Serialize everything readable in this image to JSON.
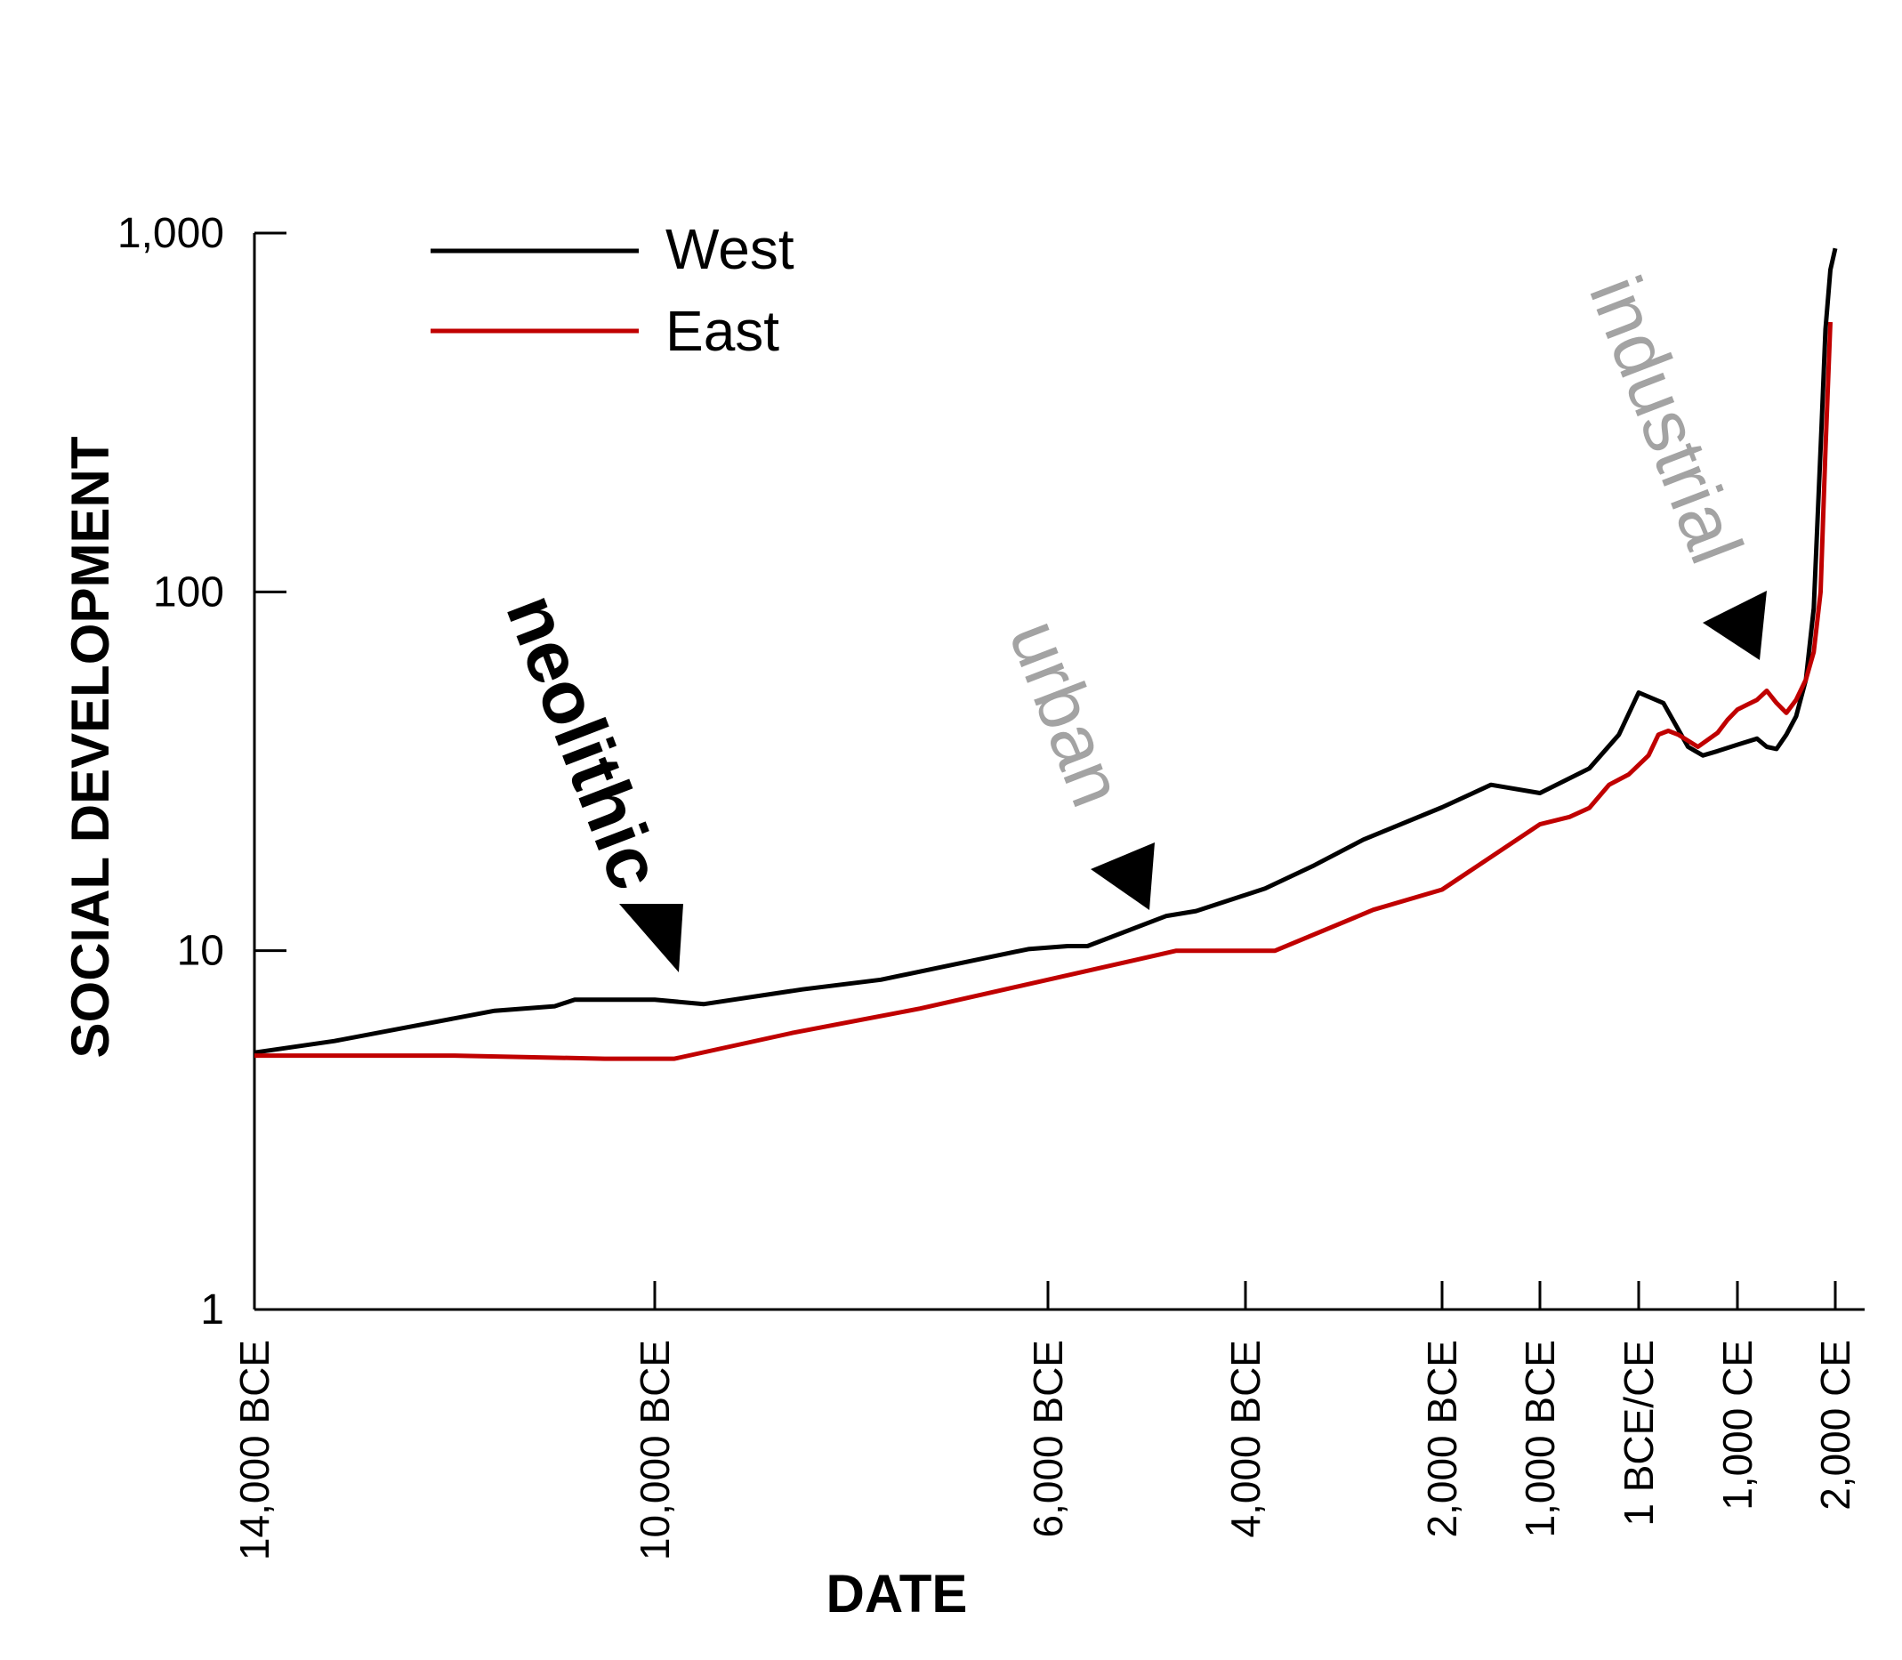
{
  "chart_data": {
    "type": "line",
    "xlabel": "DATE",
    "ylabel": "SOCIAL DEVELOPMENT",
    "y_scale": "log",
    "ylim": [
      1,
      1000
    ],
    "y_ticks": [
      {
        "value": 1,
        "label": "1"
      },
      {
        "value": 10,
        "label": "10"
      },
      {
        "value": 100,
        "label": "100"
      },
      {
        "value": 1000,
        "label": "1,000"
      }
    ],
    "x_ticks": [
      {
        "year": -14000,
        "label": "14,000 BCE"
      },
      {
        "year": -10000,
        "label": "10,000 BCE"
      },
      {
        "year": -6000,
        "label": "6,000 BCE"
      },
      {
        "year": -4000,
        "label": "4,000 BCE"
      },
      {
        "year": -2000,
        "label": "2,000 BCE"
      },
      {
        "year": -1000,
        "label": "1,000 BCE"
      },
      {
        "year": 0,
        "label": "1 BCE/CE"
      },
      {
        "year": 1000,
        "label": "1,000 CE"
      },
      {
        "year": 2000,
        "label": "2,000 CE"
      }
    ],
    "legend": {
      "position": "top-left"
    },
    "series": [
      {
        "name": "West",
        "color": "#000000",
        "points": [
          [
            -14000,
            5.2
          ],
          [
            -13200,
            5.6
          ],
          [
            -12500,
            6.1
          ],
          [
            -11600,
            6.8
          ],
          [
            -11000,
            7.0
          ],
          [
            -10800,
            7.3
          ],
          [
            -10000,
            7.3
          ],
          [
            -9500,
            7.1
          ],
          [
            -8500,
            7.8
          ],
          [
            -7700,
            8.3
          ],
          [
            -7000,
            9.1
          ],
          [
            -6200,
            10.1
          ],
          [
            -5800,
            10.3
          ],
          [
            -5600,
            10.3
          ],
          [
            -4800,
            12.5
          ],
          [
            -4500,
            12.9
          ],
          [
            -3800,
            14.9
          ],
          [
            -3300,
            17.3
          ],
          [
            -2800,
            20.4
          ],
          [
            -2000,
            25.1
          ],
          [
            -1500,
            29.0
          ],
          [
            -1000,
            27.5
          ],
          [
            -500,
            32.2
          ],
          [
            -200,
            40.0
          ],
          [
            0,
            52.4
          ],
          [
            250,
            49.0
          ],
          [
            500,
            37.0
          ],
          [
            650,
            35.0
          ],
          [
            800,
            36.0
          ],
          [
            1000,
            37.5
          ],
          [
            1200,
            39.0
          ],
          [
            1300,
            37.0
          ],
          [
            1400,
            36.5
          ],
          [
            1500,
            40.0
          ],
          [
            1600,
            45.0
          ],
          [
            1700,
            57.0
          ],
          [
            1780,
            90.0
          ],
          [
            1860,
            290.0
          ],
          [
            1900,
            540.0
          ],
          [
            1950,
            790.0
          ],
          [
            2000,
            906.4
          ]
        ]
      },
      {
        "name": "East",
        "color": "#c00000",
        "points": [
          [
            -14000,
            5.1
          ],
          [
            -12000,
            5.1
          ],
          [
            -10500,
            5.0
          ],
          [
            -9800,
            5.0
          ],
          [
            -8600,
            5.9
          ],
          [
            -7300,
            6.9
          ],
          [
            -4700,
            10.0
          ],
          [
            -3700,
            10.0
          ],
          [
            -2700,
            13.0
          ],
          [
            -2000,
            14.8
          ],
          [
            -1000,
            22.5
          ],
          [
            -700,
            23.6
          ],
          [
            -500,
            25.0
          ],
          [
            -300,
            29.0
          ],
          [
            -100,
            31.0
          ],
          [
            100,
            35.0
          ],
          [
            200,
            40.0
          ],
          [
            300,
            41.0
          ],
          [
            400,
            40.0
          ],
          [
            600,
            37.0
          ],
          [
            800,
            40.5
          ],
          [
            900,
            44.0
          ],
          [
            1000,
            47.0
          ],
          [
            1100,
            48.5
          ],
          [
            1200,
            50.0
          ],
          [
            1300,
            53.0
          ],
          [
            1400,
            49.0
          ],
          [
            1500,
            46.0
          ],
          [
            1600,
            50.0
          ],
          [
            1700,
            57.0
          ],
          [
            1780,
            68.0
          ],
          [
            1850,
            100.0
          ],
          [
            1900,
            250.0
          ],
          [
            1950,
            565.0
          ]
        ]
      }
    ],
    "annotations": [
      {
        "text": "neolithic",
        "style": "bold"
      },
      {
        "text": "urban",
        "style": "grey"
      },
      {
        "text": "industrial",
        "style": "grey"
      }
    ]
  }
}
